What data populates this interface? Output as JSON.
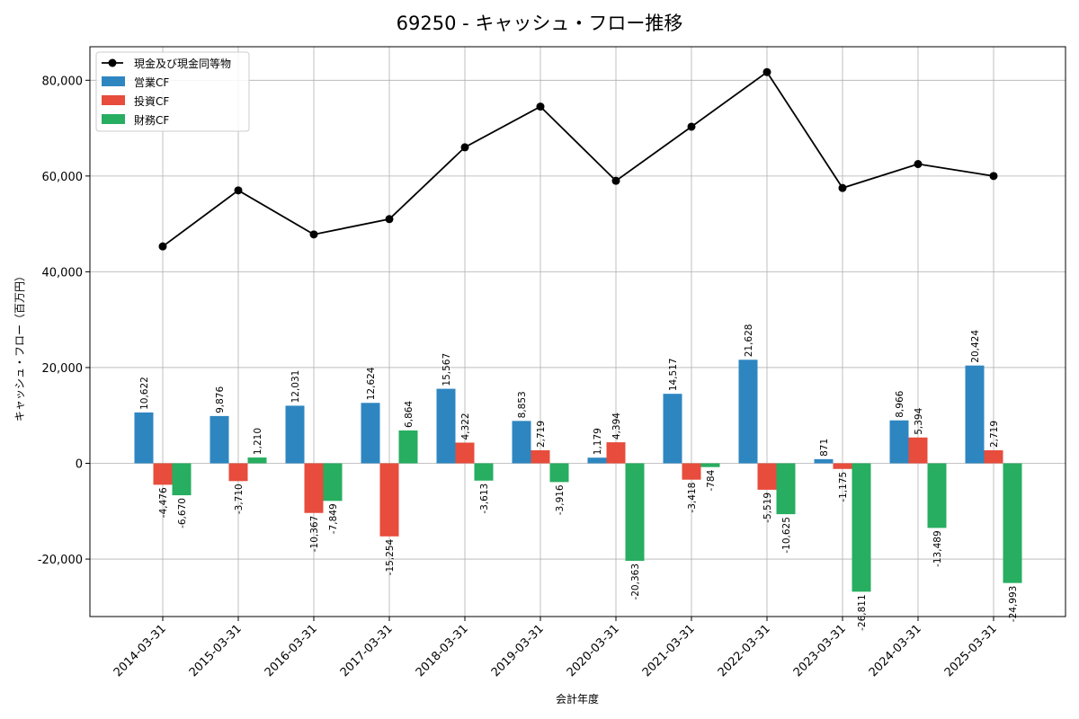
{
  "chart_data": {
    "type": "bar",
    "title": "69250 - キャッシュ・フロー推移",
    "xlabel": "会計年度",
    "ylabel": "キャッシュ・フロー（百万円）",
    "ylim": [
      -32000,
      87000
    ],
    "yticks": [
      -20000,
      0,
      20000,
      40000,
      60000,
      80000
    ],
    "ytick_labels": [
      "-20,000",
      "0",
      "20,000",
      "40,000",
      "60,000",
      "80,000"
    ],
    "grid": true,
    "legend_position": "top-left",
    "categories": [
      "2014-03-31",
      "2015-03-31",
      "2016-03-31",
      "2017-03-31",
      "2018-03-31",
      "2019-03-31",
      "2020-03-31",
      "2021-03-31",
      "2022-03-31",
      "2023-03-31",
      "2024-03-31",
      "2025-03-31"
    ],
    "line_series": {
      "name": "現金及び現金同等物",
      "color": "#000000",
      "values": [
        45300,
        57000,
        47800,
        51000,
        66000,
        74500,
        59000,
        70300,
        81700,
        57500,
        62500,
        60000
      ]
    },
    "series": [
      {
        "name": "営業CF",
        "color": "#2e86c1",
        "values": [
          10622,
          9876,
          12031,
          12624,
          15567,
          8853,
          1179,
          14517,
          21628,
          871,
          8966,
          20424
        ],
        "labels": [
          "10,622",
          "9,876",
          "12,031",
          "12,624",
          "15,567",
          "8,853",
          "1,179",
          "14,517",
          "21,628",
          "871",
          "8,966",
          "20,424"
        ]
      },
      {
        "name": "投資CF",
        "color": "#e74c3c",
        "values": [
          -4476,
          -3710,
          -10367,
          -15254,
          4322,
          2719,
          4394,
          -3418,
          -5519,
          -1175,
          5394,
          2719
        ],
        "labels": [
          "-4,476",
          "-3,710",
          "-10,367",
          "-15,254",
          "4,322",
          "2,719",
          "4,394",
          "-3,418",
          "-5,519",
          "-1,175",
          "5,394",
          "2,719"
        ]
      },
      {
        "name": "財務CF",
        "color": "#27ae60",
        "values": [
          -6670,
          1210,
          -7849,
          6864,
          -3613,
          -3916,
          -20363,
          -784,
          -10625,
          -26811,
          -13489,
          -24993
        ],
        "labels": [
          "-6,670",
          "1,210",
          "-7,849",
          "6,864",
          "-3,613",
          "-3,916",
          "-20,363",
          "-784",
          "-10,625",
          "-26,811",
          "-13,489",
          "-24,993"
        ]
      }
    ]
  }
}
